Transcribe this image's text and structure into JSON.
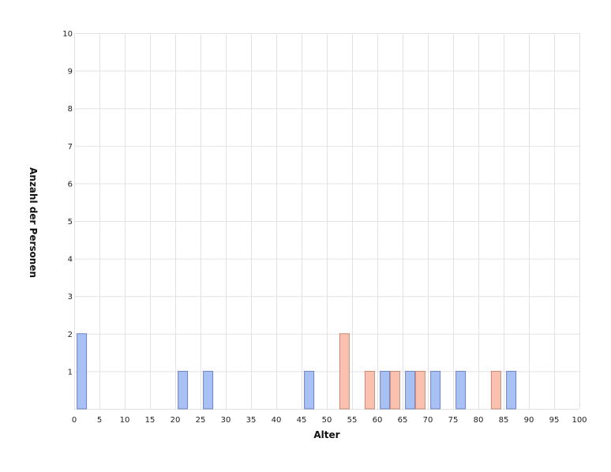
{
  "chart_data": {
    "type": "bar",
    "xlabel": "Alter",
    "ylabel": "Anzahl der Personen",
    "xlim": [
      0,
      100
    ],
    "ylim": [
      0,
      10
    ],
    "x_ticks": [
      0,
      5,
      10,
      15,
      20,
      25,
      30,
      35,
      40,
      45,
      50,
      55,
      60,
      65,
      70,
      75,
      80,
      85,
      90,
      95,
      100
    ],
    "y_ticks": [
      1,
      2,
      3,
      4,
      5,
      6,
      7,
      8,
      9,
      10
    ],
    "grid": true,
    "colors": {
      "blue": "#a9c0f5",
      "blue_edge": "#6f82c4",
      "salmon": "#f9c2b0",
      "salmon_edge": "#c98774"
    },
    "series": [
      {
        "color_key": "blue",
        "points": [
          {
            "x": 1.5,
            "y": 2
          },
          {
            "x": 21.5,
            "y": 1
          },
          {
            "x": 26.5,
            "y": 1
          },
          {
            "x": 46.5,
            "y": 1
          },
          {
            "x": 61.5,
            "y": 1
          },
          {
            "x": 66.5,
            "y": 1
          },
          {
            "x": 71.5,
            "y": 1
          },
          {
            "x": 76.5,
            "y": 1
          },
          {
            "x": 86.5,
            "y": 1
          }
        ]
      },
      {
        "color_key": "salmon",
        "points": [
          {
            "x": 53.5,
            "y": 2
          },
          {
            "x": 58.5,
            "y": 1
          },
          {
            "x": 63.5,
            "y": 1
          },
          {
            "x": 68.5,
            "y": 1
          },
          {
            "x": 83.5,
            "y": 1
          }
        ]
      }
    ]
  }
}
